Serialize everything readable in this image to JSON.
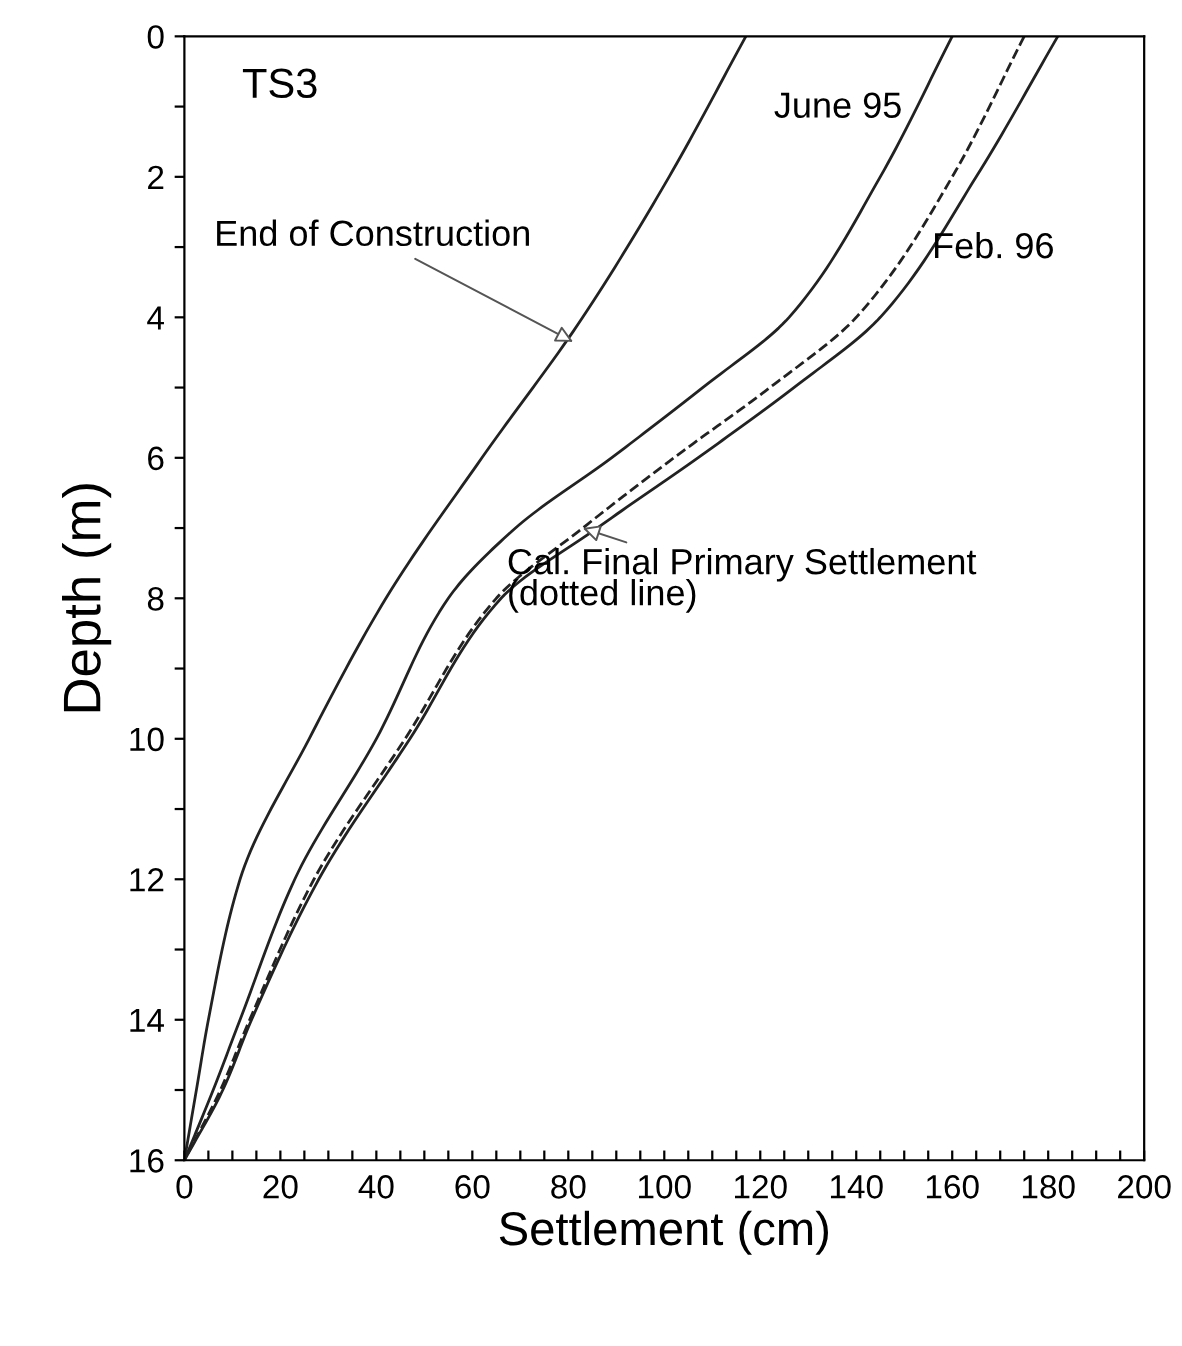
{
  "chart_data": {
    "type": "line",
    "xlabel": "Settlement (cm)",
    "ylabel": "Depth (m)",
    "xlim": [
      0,
      200
    ],
    "ylim": [
      16,
      0
    ],
    "xticks": [
      0,
      {
        "value": 5,
        "label": null
      },
      {
        "value": 10,
        "label": null
      },
      {
        "value": 15,
        "label": null
      },
      20,
      {
        "value": 25,
        "label": null
      },
      {
        "value": 30,
        "label": null
      },
      {
        "value": 35,
        "label": null
      },
      40,
      {
        "value": 45,
        "label": null
      },
      {
        "value": 50,
        "label": null
      },
      {
        "value": 55,
        "label": null
      },
      60,
      {
        "value": 65,
        "label": null
      },
      {
        "value": 70,
        "label": null
      },
      {
        "value": 75,
        "label": null
      },
      80,
      {
        "value": 85,
        "label": null
      },
      {
        "value": 90,
        "label": null
      },
      {
        "value": 95,
        "label": null
      },
      100,
      {
        "value": 105,
        "label": null
      },
      {
        "value": 110,
        "label": null
      },
      {
        "value": 115,
        "label": null
      },
      120,
      {
        "value": 125,
        "label": null
      },
      {
        "value": 130,
        "label": null
      },
      {
        "value": 135,
        "label": null
      },
      140,
      {
        "value": 145,
        "label": null
      },
      {
        "value": 150,
        "label": null
      },
      {
        "value": 155,
        "label": null
      },
      160,
      {
        "value": 165,
        "label": null
      },
      {
        "value": 170,
        "label": null
      },
      {
        "value": 175,
        "label": null
      },
      180,
      {
        "value": 185,
        "label": null
      },
      {
        "value": 190,
        "label": null
      },
      {
        "value": 195,
        "label": null
      },
      200
    ],
    "yticks": [
      0,
      {
        "value": 1,
        "label": null
      },
      2,
      {
        "value": 3,
        "label": null
      },
      4,
      {
        "value": 5,
        "label": null
      },
      6,
      {
        "value": 7,
        "label": null
      },
      8,
      {
        "value": 9,
        "label": null
      },
      10,
      {
        "value": 11,
        "label": null
      },
      12,
      {
        "value": 13,
        "label": null
      },
      14,
      {
        "value": 15,
        "label": null
      },
      16
    ],
    "grid": false,
    "series": [
      {
        "color": "#222222",
        "line_style": "solid",
        "x": [
          117,
          101,
          83,
          62,
          42,
          26,
          11.6,
          5,
          2.5,
          0
        ],
        "values": [
          0,
          2,
          4,
          6,
          8,
          10,
          12,
          14,
          15,
          16
        ]
      },
      {
        "color": "#222222",
        "line_style": "solid",
        "x": [
          160,
          145,
          126,
          108,
          89,
          69,
          55,
          40,
          23,
          11.6,
          6,
          0
        ],
        "values": [
          0,
          2,
          4,
          5,
          6,
          7,
          8,
          10,
          12,
          14,
          15,
          16
        ]
      },
      {
        "color": "#222222",
        "line_style": "dashed",
        "x": [
          175,
          160,
          140,
          122,
          102,
          83,
          65,
          46,
          27,
          13.6,
          7.5,
          0
        ],
        "values": [
          0,
          2,
          4,
          5,
          6,
          7,
          8,
          10,
          12,
          14,
          15,
          16
        ]
      },
      {
        "color": "#222222",
        "line_style": "solid",
        "x": [
          182,
          165,
          145,
          127,
          107,
          86,
          66,
          47,
          28,
          14,
          8,
          0
        ],
        "values": [
          0,
          2,
          4,
          5,
          6,
          7,
          8,
          10,
          12,
          14,
          15,
          16
        ]
      }
    ],
    "annotations": [
      "TS3",
      {
        "text": "End of Construction",
        "x": 81,
        "y": 4.35
      },
      {
        "text": "June 95",
        "x": 152,
        "y": 1.2
      },
      {
        "text": "Feb. 96",
        "x": 155,
        "y": 3.0
      },
      {
        "text": "Cal. Final Primary Settlement\n(dotted line)",
        "x": 83,
        "y": 7.0
      }
    ]
  }
}
